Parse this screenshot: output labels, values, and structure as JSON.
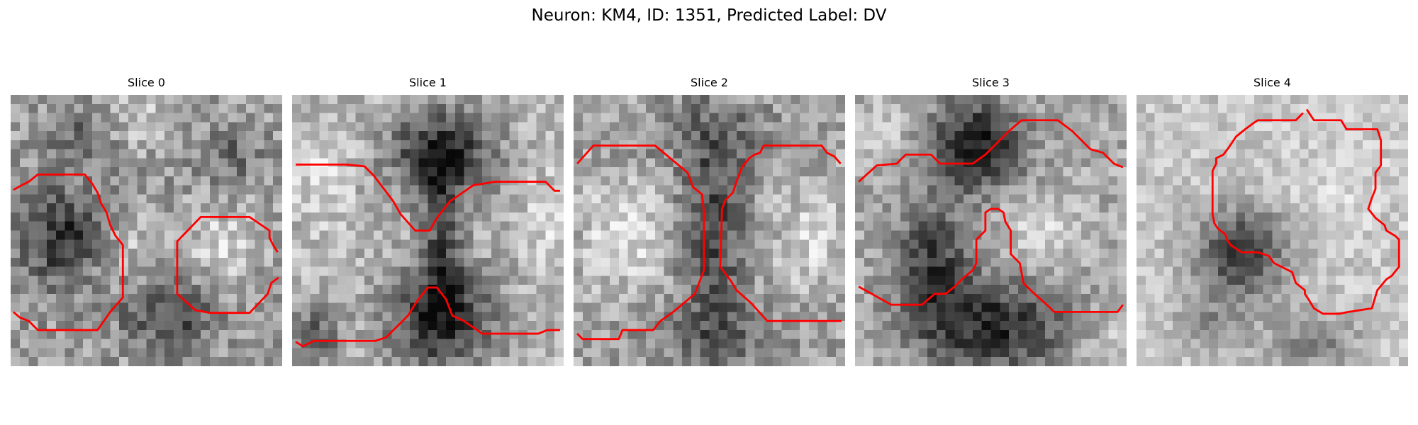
{
  "figure": {
    "title": "Neuron: KM4, ID: 1351, Predicted Label: DV"
  },
  "panels": [
    {
      "title": "Slice 0"
    },
    {
      "title": "Slice 1"
    },
    {
      "title": "Slice 2"
    },
    {
      "title": "Slice 3"
    },
    {
      "title": "Slice 4"
    }
  ],
  "colors": {
    "contour": "#ff0000",
    "background": "#ffffff"
  }
}
